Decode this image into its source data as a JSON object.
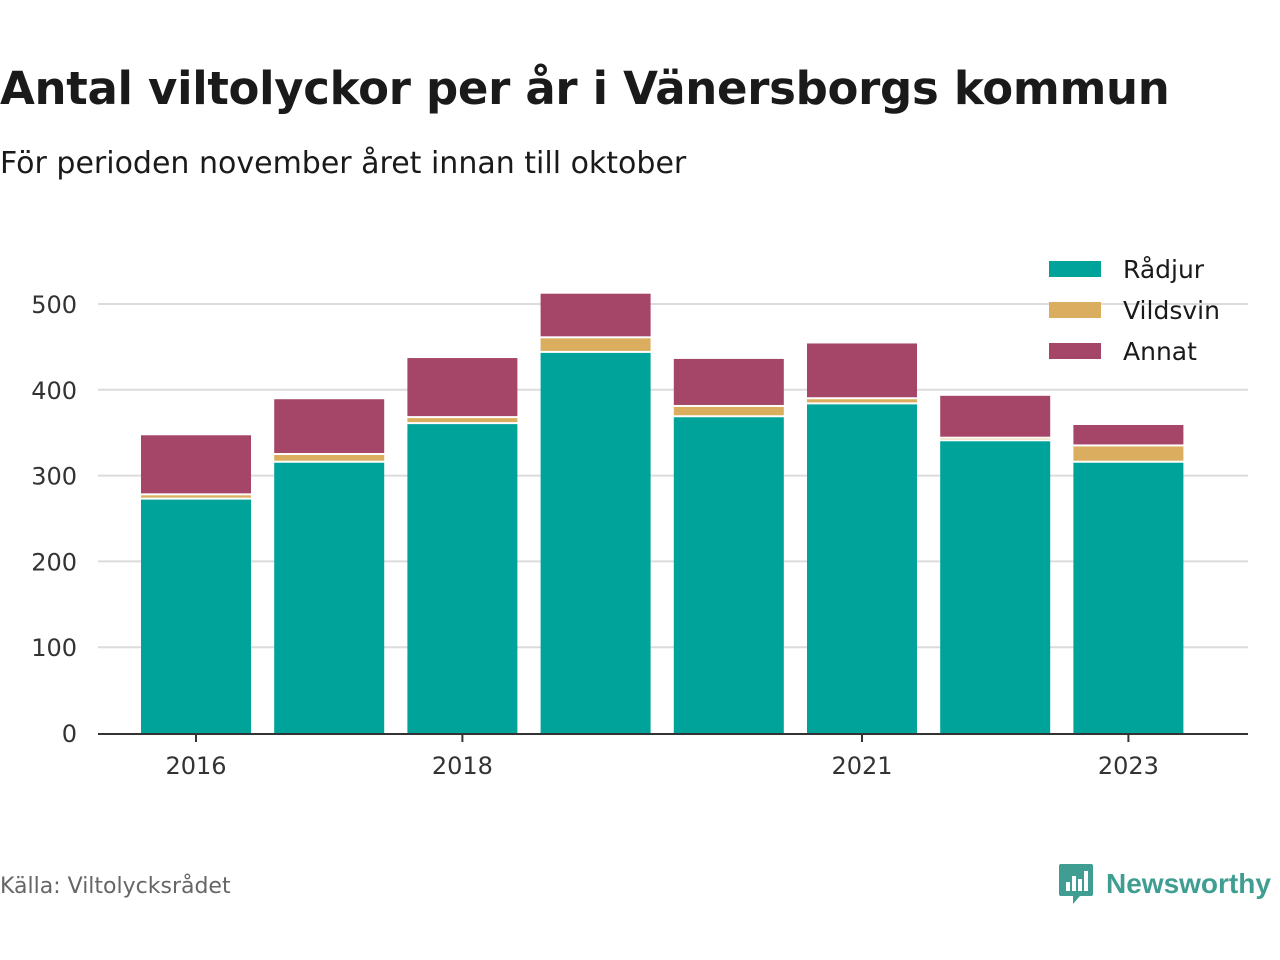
{
  "title": "Antal viltolyckor per år i Vänersborgs kommun",
  "subtitle": "För perioden november året innan till oktober",
  "source": "Källa: Viltolycksrådet",
  "brand": {
    "name": "Newsworthy",
    "icon": "newsworthy-logo-icon",
    "color": "#3f9e91"
  },
  "chart_data": {
    "type": "bar",
    "stacked": true,
    "categories": [
      "2016",
      "2017",
      "2018",
      "2019",
      "2020",
      "2021",
      "2022",
      "2023"
    ],
    "x_tick_labels": [
      "2016",
      "",
      "2018",
      "",
      "",
      "2021",
      "",
      "2023"
    ],
    "series": [
      {
        "name": "Rådjur",
        "color": "#00a39a",
        "values": [
          272,
          315,
          360,
          443,
          368,
          383,
          340,
          315
        ]
      },
      {
        "name": "Vildsvin",
        "color": "#dbae5f",
        "values": [
          5,
          9,
          7,
          17,
          12,
          6,
          3,
          19
        ]
      },
      {
        "name": "Annat",
        "color": "#a54567",
        "values": [
          70,
          65,
          70,
          52,
          56,
          65,
          50,
          25
        ]
      }
    ],
    "ylim": [
      0,
      500
    ],
    "yticks": [
      0,
      100,
      200,
      300,
      400,
      500
    ],
    "xlabel": "",
    "ylabel": "",
    "grid": true,
    "legend_position": "top-right"
  }
}
